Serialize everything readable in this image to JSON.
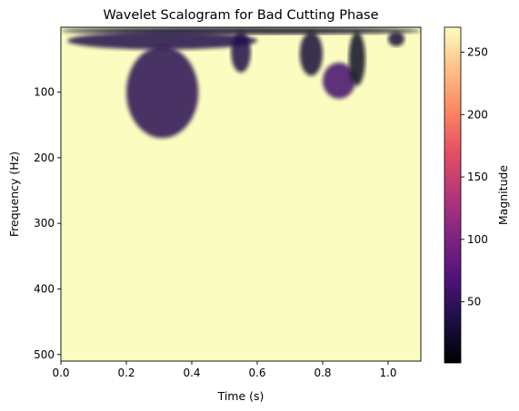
{
  "chart_data": {
    "type": "heatmap",
    "title": "Wavelet Scalogram for Bad Cutting Phase",
    "xlabel": "Time (s)",
    "ylabel": "Frequency (Hz)",
    "xlim": [
      0.0,
      1.1
    ],
    "ylim": [
      510,
      1
    ],
    "x_ticks": [
      "0.0",
      "0.2",
      "0.4",
      "0.6",
      "0.8",
      "1.0"
    ],
    "x_tick_values": [
      0.0,
      0.2,
      0.4,
      0.6,
      0.8,
      1.0
    ],
    "y_ticks": [
      "100",
      "200",
      "300",
      "400",
      "500"
    ],
    "y_tick_values": [
      100,
      200,
      300,
      400,
      500
    ],
    "colormap": "magma",
    "background_value": 270,
    "colorbar": {
      "label": "Magnitude",
      "range": [
        1,
        270
      ],
      "ticks": [
        "50",
        "100",
        "150",
        "200",
        "250"
      ],
      "tick_values": [
        50,
        100,
        150,
        200,
        250
      ]
    },
    "low_magnitude_regions": [
      {
        "t_start": 0.0,
        "t_end": 1.1,
        "f_top": 1,
        "f_bottom": 12,
        "magnitude": 25
      },
      {
        "t_start": 0.02,
        "t_end": 0.6,
        "f_top": 8,
        "f_bottom": 35,
        "magnitude": 40
      },
      {
        "t_start": 0.2,
        "t_end": 0.42,
        "f_top": 30,
        "f_bottom": 170,
        "magnitude": 45
      },
      {
        "t_start": 0.52,
        "t_end": 0.58,
        "f_top": 8,
        "f_bottom": 70,
        "magnitude": 40
      },
      {
        "t_start": 0.73,
        "t_end": 0.8,
        "f_top": 8,
        "f_bottom": 75,
        "magnitude": 30
      },
      {
        "t_start": 0.8,
        "t_end": 0.9,
        "f_top": 55,
        "f_bottom": 110,
        "magnitude": 60
      },
      {
        "t_start": 0.88,
        "t_end": 0.93,
        "f_top": 8,
        "f_bottom": 90,
        "magnitude": 20
      },
      {
        "t_start": 1.0,
        "t_end": 1.05,
        "f_top": 8,
        "f_bottom": 30,
        "magnitude": 30
      }
    ]
  }
}
